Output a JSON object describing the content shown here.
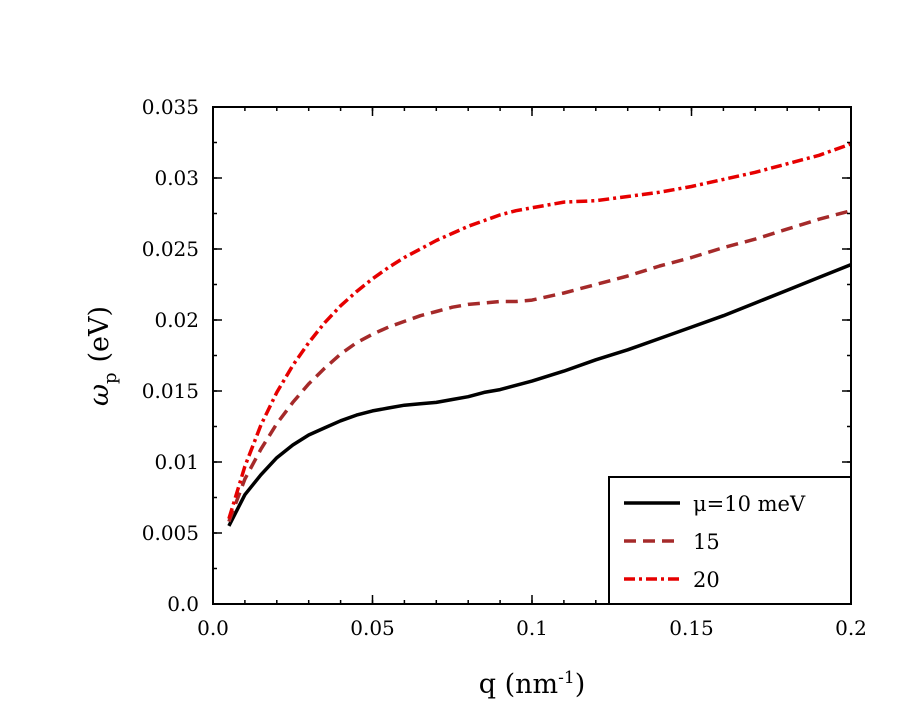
{
  "chart_data": {
    "type": "line",
    "title": "",
    "xlabel": {
      "prefix": "q (nm",
      "superscript": "-1",
      "suffix": ")"
    },
    "ylabel": {
      "symbol": "ω",
      "subscript": "p",
      "unit": "(eV)"
    },
    "xlim": [
      0,
      0.2
    ],
    "ylim": [
      0,
      0.035
    ],
    "xticks": [
      "0.0",
      "0.05",
      "0.1",
      "0.15",
      "0.2"
    ],
    "yticks": [
      "0.0",
      "0.005",
      "0.01",
      "0.015",
      "0.02",
      "0.025",
      "0.03",
      "0.035"
    ],
    "grid": false,
    "legend_position": "bottom-right",
    "series": [
      {
        "name": "μ=10 meV",
        "color": "#000000",
        "style": "solid",
        "x": [
          0.005,
          0.01,
          0.015,
          0.02,
          0.025,
          0.03,
          0.035,
          0.04,
          0.045,
          0.05,
          0.055,
          0.06,
          0.065,
          0.07,
          0.075,
          0.08,
          0.085,
          0.09,
          0.095,
          0.1,
          0.11,
          0.12,
          0.13,
          0.14,
          0.15,
          0.16,
          0.17,
          0.18,
          0.19,
          0.2
        ],
        "y": [
          0.0055,
          0.0077,
          0.0091,
          0.0103,
          0.0112,
          0.0119,
          0.0124,
          0.0129,
          0.0133,
          0.0136,
          0.0138,
          0.014,
          0.0141,
          0.0142,
          0.0144,
          0.0146,
          0.0149,
          0.0151,
          0.0154,
          0.0157,
          0.0164,
          0.0172,
          0.0179,
          0.0187,
          0.0195,
          0.0203,
          0.0212,
          0.0221,
          0.023,
          0.0239
        ]
      },
      {
        "name": "15",
        "color": "#a52a2a",
        "style": "dashed",
        "x": [
          0.005,
          0.01,
          0.015,
          0.02,
          0.025,
          0.03,
          0.035,
          0.04,
          0.045,
          0.05,
          0.055,
          0.06,
          0.065,
          0.07,
          0.075,
          0.08,
          0.085,
          0.09,
          0.095,
          0.1,
          0.11,
          0.12,
          0.13,
          0.14,
          0.15,
          0.16,
          0.17,
          0.18,
          0.19,
          0.2
        ],
        "y": [
          0.0058,
          0.0088,
          0.0109,
          0.0127,
          0.0142,
          0.0155,
          0.0166,
          0.0176,
          0.0184,
          0.019,
          0.0195,
          0.0199,
          0.0203,
          0.0206,
          0.0209,
          0.0211,
          0.0212,
          0.0213,
          0.0213,
          0.0214,
          0.0219,
          0.0225,
          0.0231,
          0.0238,
          0.0244,
          0.0251,
          0.0257,
          0.0264,
          0.0271,
          0.0277
        ]
      },
      {
        "name": "20",
        "color": "#e60000",
        "style": "dashdot",
        "x": [
          0.005,
          0.01,
          0.015,
          0.02,
          0.025,
          0.03,
          0.035,
          0.04,
          0.045,
          0.05,
          0.055,
          0.06,
          0.065,
          0.07,
          0.075,
          0.08,
          0.085,
          0.09,
          0.095,
          0.1,
          0.11,
          0.12,
          0.13,
          0.14,
          0.15,
          0.16,
          0.17,
          0.18,
          0.19,
          0.2
        ],
        "y": [
          0.006,
          0.0097,
          0.0126,
          0.0149,
          0.0168,
          0.0184,
          0.0198,
          0.021,
          0.022,
          0.0229,
          0.0237,
          0.0244,
          0.025,
          0.0256,
          0.0261,
          0.0266,
          0.027,
          0.0274,
          0.0277,
          0.0279,
          0.0283,
          0.0284,
          0.0287,
          0.029,
          0.0294,
          0.0299,
          0.0304,
          0.031,
          0.0316,
          0.0324
        ]
      }
    ]
  }
}
